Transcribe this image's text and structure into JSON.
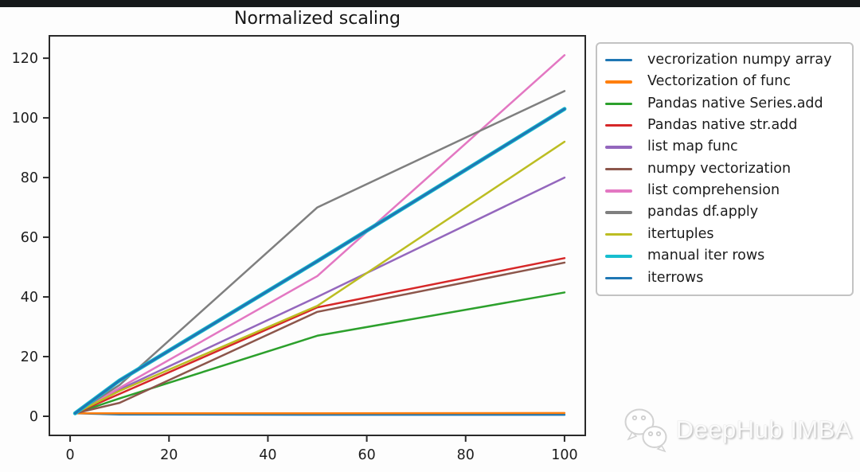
{
  "page": {
    "background": "#fdfdfd",
    "top_strip_color": "#16191b"
  },
  "watermark": {
    "text": "DeepHub IMBA",
    "icon": "wechat-icon"
  },
  "chart_data": {
    "type": "line",
    "title": "Normalized scaling",
    "xlabel": "",
    "ylabel": "",
    "x": [
      1,
      10,
      50,
      100
    ],
    "xlim": [
      -4.2,
      104.2
    ],
    "ylim": [
      -6.4,
      127.5
    ],
    "x_ticks": [
      0,
      20,
      40,
      60,
      80,
      100
    ],
    "y_ticks": [
      0,
      20,
      40,
      60,
      80,
      100,
      120
    ],
    "grid": false,
    "legend_position": "outside-right",
    "axis_color": "#2a2a2a",
    "tick_label_color": "#1d1d1d",
    "series": [
      {
        "name": "vecrorization numpy array",
        "color": "#1f77b4",
        "lw": 2.5,
        "values": [
          1,
          0.6,
          0.5,
          0.5
        ]
      },
      {
        "name": "Vectorization of func",
        "color": "#ff7f0e",
        "lw": 2.5,
        "values": [
          1,
          1.0,
          1.0,
          1.1
        ]
      },
      {
        "name": "Pandas native Series.add",
        "color": "#2ca02c",
        "lw": 2.5,
        "values": [
          1,
          6,
          27,
          41.5
        ]
      },
      {
        "name": "Pandas native str.add",
        "color": "#d62728",
        "lw": 2.5,
        "values": [
          1,
          7.5,
          36.5,
          53
        ]
      },
      {
        "name": "list map func",
        "color": "#9467bd",
        "lw": 2.5,
        "values": [
          1,
          9,
          40,
          80
        ]
      },
      {
        "name": "numpy vectorization",
        "color": "#8c564b",
        "lw": 2.5,
        "values": [
          1,
          4.5,
          35,
          51.5
        ]
      },
      {
        "name": "list comprehension",
        "color": "#e377c2",
        "lw": 2.5,
        "values": [
          1,
          9.5,
          47,
          121
        ]
      },
      {
        "name": "pandas df.apply",
        "color": "#7f7f7f",
        "lw": 2.5,
        "values": [
          1,
          10.5,
          70,
          109
        ]
      },
      {
        "name": "itertuples",
        "color": "#bcbd22",
        "lw": 2.5,
        "values": [
          1,
          8.5,
          37,
          92
        ]
      },
      {
        "name": "manual iter rows",
        "color": "#17becf",
        "lw": 5.0,
        "values": [
          1,
          12,
          52,
          103
        ]
      },
      {
        "name": "iterrows",
        "color": "#1f77b4",
        "lw": 3.0,
        "values": [
          1,
          12,
          52,
          103
        ]
      }
    ]
  }
}
